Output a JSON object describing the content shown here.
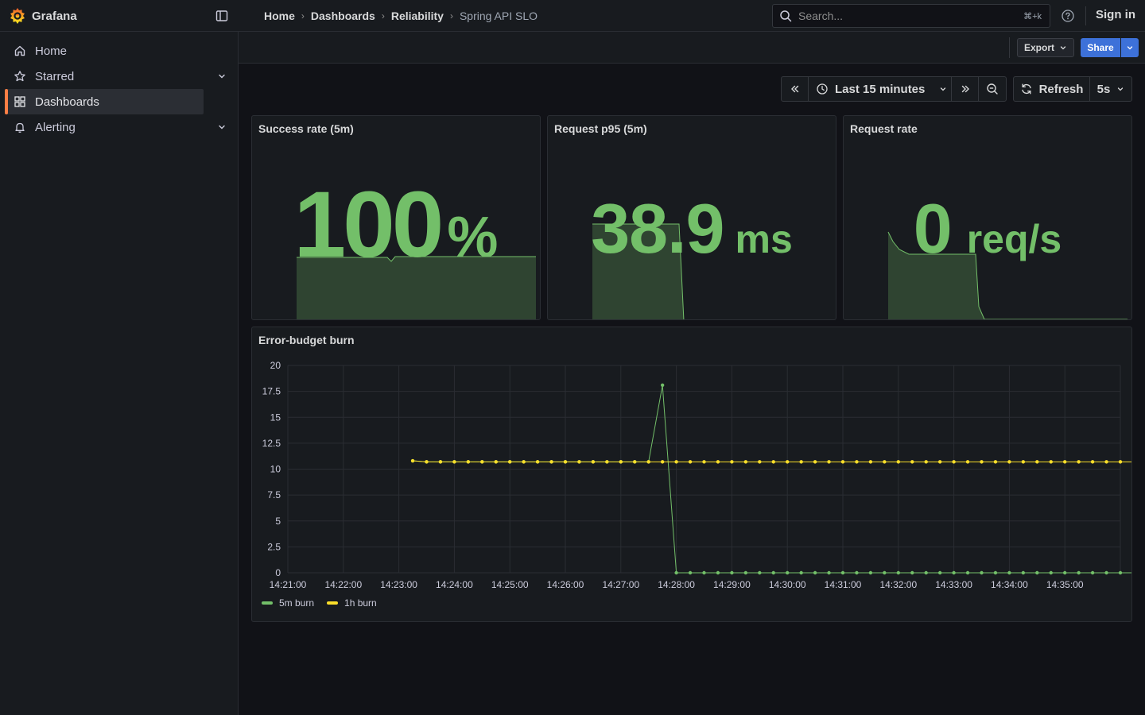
{
  "app": {
    "title": "Grafana"
  },
  "breadcrumb": [
    "Home",
    "Dashboards",
    "Reliability",
    "Spring API SLO"
  ],
  "search": {
    "placeholder": "Search...",
    "shortcut": "⌘+k"
  },
  "header": {
    "sign_in": "Sign in"
  },
  "sidebar": {
    "items": [
      {
        "label": "Home",
        "icon": "home-icon",
        "active": false
      },
      {
        "label": "Starred",
        "icon": "star-icon",
        "active": false,
        "expandable": true
      },
      {
        "label": "Dashboards",
        "icon": "dashboards-grid-icon",
        "active": true
      },
      {
        "label": "Alerting",
        "icon": "bell-icon",
        "active": false,
        "expandable": true
      }
    ]
  },
  "toolbar": {
    "export_label": "Export",
    "share_label": "Share"
  },
  "time_controls": {
    "range_label": "Last 15 minutes",
    "refresh_label": "Refresh",
    "refresh_interval": "5s"
  },
  "colors": {
    "green": "#73bf69",
    "yellow": "#fade2a",
    "accent": "#ff7f45",
    "primary": "#3d71d9"
  },
  "panels": {
    "success_rate": {
      "title": "Success rate (5m)",
      "value": "100",
      "unit": "%"
    },
    "p95": {
      "title": "Request p95 (5m)",
      "value": "38.9",
      "unit": "ms"
    },
    "request_rate": {
      "title": "Request rate",
      "value": "0",
      "unit": "req/s"
    },
    "burn": {
      "title": "Error-budget burn"
    }
  },
  "chart_data": {
    "type": "line",
    "title": "Error-budget burn",
    "ylim": [
      0,
      20
    ],
    "yticks": [
      "0",
      "2.5",
      "5",
      "7.5",
      "10",
      "12.5",
      "15",
      "17.5",
      "20"
    ],
    "xticks": [
      "14:21:00",
      "14:22:00",
      "14:23:00",
      "14:24:00",
      "14:25:00",
      "14:26:00",
      "14:27:00",
      "14:28:00",
      "14:29:00",
      "14:30:00",
      "14:31:00",
      "14:32:00",
      "14:33:00",
      "14:34:00",
      "14:35:00"
    ],
    "x_start": "14:23:15",
    "x_step_seconds": 15,
    "legend_position": "bottom-left",
    "grid": true,
    "series": [
      {
        "name": "5m burn",
        "color": "#73bf69",
        "values": [
          10.8,
          10.7,
          10.7,
          10.7,
          10.7,
          10.7,
          10.7,
          10.7,
          10.7,
          10.7,
          10.7,
          10.7,
          10.7,
          10.7,
          10.7,
          10.7,
          10.7,
          10.7,
          18.1,
          0,
          0,
          0,
          0,
          0,
          0,
          0,
          0,
          0,
          0,
          0,
          0,
          0,
          0,
          0,
          0,
          0,
          0,
          0,
          0,
          0,
          0,
          0,
          0,
          0,
          0,
          0,
          0,
          0,
          0,
          0,
          0,
          0,
          0
        ]
      },
      {
        "name": "1h burn",
        "color": "#fade2a",
        "values": [
          10.8,
          10.7,
          10.7,
          10.7,
          10.7,
          10.7,
          10.7,
          10.7,
          10.7,
          10.7,
          10.7,
          10.7,
          10.7,
          10.7,
          10.7,
          10.7,
          10.7,
          10.7,
          10.7,
          10.7,
          10.7,
          10.7,
          10.7,
          10.7,
          10.7,
          10.7,
          10.7,
          10.7,
          10.7,
          10.7,
          10.7,
          10.7,
          10.7,
          10.7,
          10.7,
          10.7,
          10.7,
          10.7,
          10.7,
          10.7,
          10.7,
          10.7,
          10.7,
          10.7,
          10.7,
          10.7,
          10.7,
          10.7,
          10.7,
          10.7,
          10.7,
          10.7,
          10.7
        ]
      }
    ]
  }
}
